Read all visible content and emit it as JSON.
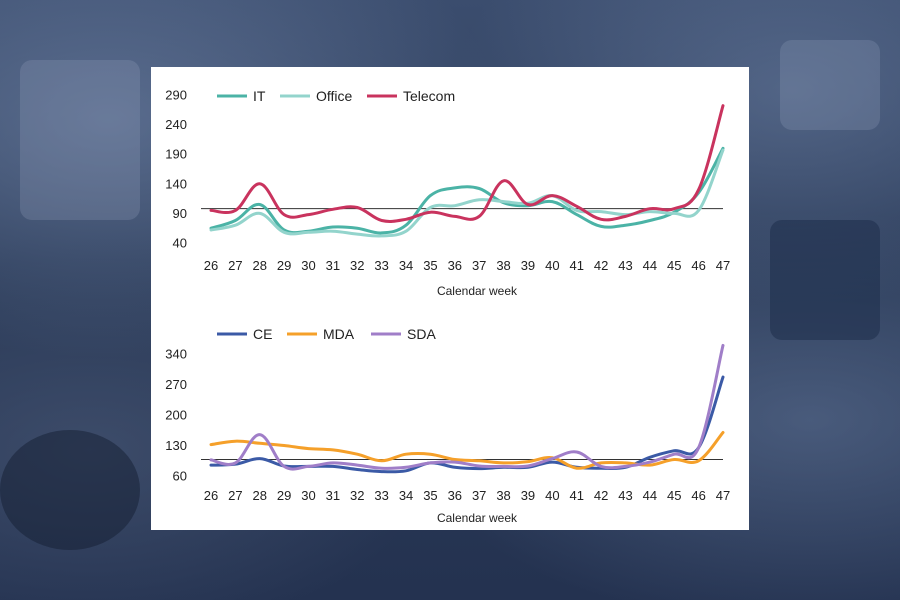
{
  "chart_data": [
    {
      "type": "line",
      "xlabel": "Calendar week",
      "ylabel": "",
      "ylim": [
        40,
        290
      ],
      "yticks": [
        40,
        90,
        140,
        190,
        240,
        290
      ],
      "categories": [
        "26",
        "27",
        "28",
        "29",
        "30",
        "31",
        "32",
        "33",
        "34",
        "35",
        "36",
        "37",
        "38",
        "39",
        "40",
        "41",
        "42",
        "43",
        "44",
        "45",
        "46",
        "47"
      ],
      "reference_line": 98,
      "legend_position": "top-left",
      "grid": false,
      "series": [
        {
          "name": "IT",
          "color": "#4bb3a6",
          "values": [
            65,
            78,
            105,
            62,
            60,
            67,
            65,
            57,
            70,
            120,
            133,
            132,
            108,
            103,
            110,
            88,
            68,
            70,
            78,
            92,
            125,
            200
          ]
        },
        {
          "name": "Office",
          "color": "#93d4cc",
          "values": [
            62,
            70,
            90,
            58,
            58,
            60,
            55,
            52,
            60,
            100,
            103,
            113,
            110,
            107,
            120,
            95,
            93,
            88,
            93,
            90,
            95,
            197
          ]
        },
        {
          "name": "Telecom",
          "color": "#c9335e",
          "values": [
            95,
            95,
            140,
            88,
            88,
            97,
            100,
            78,
            80,
            92,
            85,
            85,
            145,
            105,
            120,
            102,
            80,
            85,
            98,
            98,
            130,
            272
          ]
        }
      ]
    },
    {
      "type": "line",
      "xlabel": "Calendar week",
      "ylabel": "",
      "ylim": [
        60,
        370
      ],
      "yticks": [
        60,
        130,
        200,
        270,
        340
      ],
      "categories": [
        "26",
        "27",
        "28",
        "29",
        "30",
        "31",
        "32",
        "33",
        "34",
        "35",
        "36",
        "37",
        "38",
        "39",
        "40",
        "41",
        "42",
        "43",
        "44",
        "45",
        "46",
        "47"
      ],
      "reference_line": 98,
      "legend_position": "top-left",
      "grid": false,
      "series": [
        {
          "name": "CE",
          "color": "#3b5aa6",
          "values": [
            85,
            87,
            100,
            83,
            82,
            82,
            75,
            70,
            72,
            90,
            80,
            77,
            80,
            80,
            92,
            80,
            78,
            80,
            103,
            118,
            125,
            287
          ]
        },
        {
          "name": "MDA",
          "color": "#f5a02a",
          "values": [
            132,
            140,
            135,
            130,
            123,
            120,
            110,
            95,
            110,
            110,
            98,
            95,
            90,
            93,
            102,
            78,
            90,
            90,
            85,
            98,
            95,
            160
          ]
        },
        {
          "name": "SDA",
          "color": "#a07ec8",
          "values": [
            97,
            90,
            155,
            82,
            82,
            90,
            85,
            78,
            80,
            90,
            92,
            83,
            82,
            83,
            100,
            115,
            82,
            82,
            92,
            110,
            125,
            360
          ]
        }
      ]
    }
  ]
}
